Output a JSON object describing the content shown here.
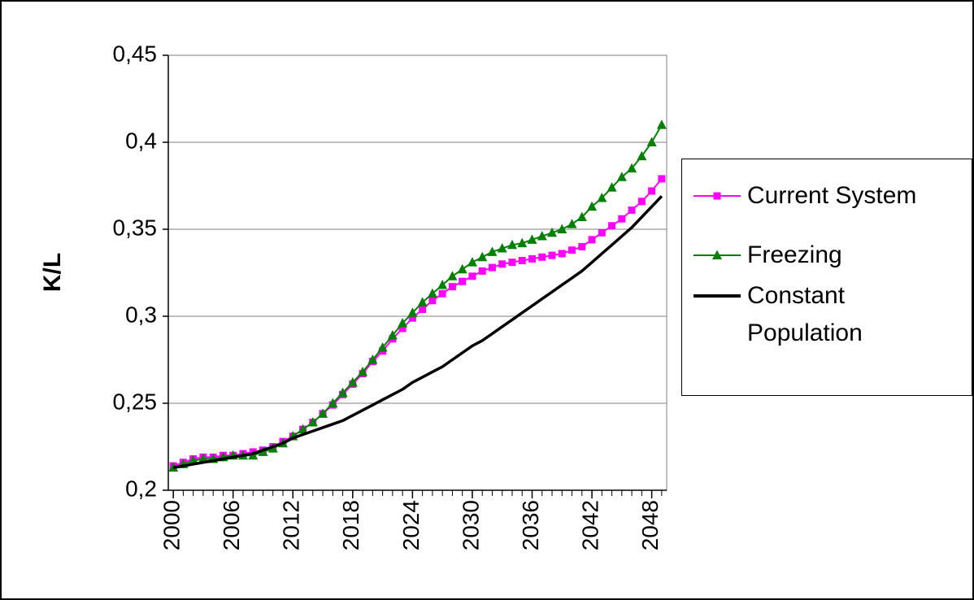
{
  "chart_data": {
    "type": "line",
    "y_label": "K/L",
    "x": [
      2000,
      2001,
      2002,
      2003,
      2004,
      2005,
      2006,
      2007,
      2008,
      2009,
      2010,
      2011,
      2012,
      2013,
      2014,
      2015,
      2016,
      2017,
      2018,
      2019,
      2020,
      2021,
      2022,
      2023,
      2024,
      2025,
      2026,
      2027,
      2028,
      2029,
      2030,
      2031,
      2032,
      2033,
      2034,
      2035,
      2036,
      2037,
      2038,
      2039,
      2040,
      2041,
      2042,
      2043,
      2044,
      2045,
      2046,
      2047,
      2048,
      2049
    ],
    "xlim": [
      1999.5,
      2049.5
    ],
    "xticks": [
      2000,
      2006,
      2012,
      2018,
      2024,
      2030,
      2036,
      2042,
      2048
    ],
    "ylim": [
      0.2,
      0.45
    ],
    "yticks": [
      {
        "value": 0.2,
        "label": "0,2"
      },
      {
        "value": 0.25,
        "label": "0,25"
      },
      {
        "value": 0.3,
        "label": "0,3"
      },
      {
        "value": 0.35,
        "label": "0,35"
      },
      {
        "value": 0.4,
        "label": "0,4"
      },
      {
        "value": 0.45,
        "label": "0,45"
      }
    ],
    "grid": true,
    "legend": "right",
    "series": [
      {
        "name": "Current System",
        "color": "#ff00ff",
        "marker": "square",
        "values": [
          0.214,
          0.216,
          0.218,
          0.219,
          0.219,
          0.22,
          0.22,
          0.221,
          0.222,
          0.223,
          0.225,
          0.228,
          0.231,
          0.235,
          0.239,
          0.244,
          0.249,
          0.255,
          0.261,
          0.267,
          0.274,
          0.28,
          0.287,
          0.293,
          0.299,
          0.304,
          0.309,
          0.313,
          0.317,
          0.32,
          0.323,
          0.326,
          0.328,
          0.33,
          0.331,
          0.332,
          0.333,
          0.334,
          0.335,
          0.336,
          0.338,
          0.34,
          0.344,
          0.348,
          0.352,
          0.356,
          0.361,
          0.366,
          0.372,
          0.379
        ]
      },
      {
        "name": "Freezing",
        "color": "#008000",
        "marker": "triangle",
        "values": [
          0.213,
          0.215,
          0.217,
          0.218,
          0.218,
          0.219,
          0.22,
          0.22,
          0.22,
          0.222,
          0.224,
          0.227,
          0.231,
          0.235,
          0.239,
          0.244,
          0.25,
          0.256,
          0.262,
          0.268,
          0.275,
          0.282,
          0.289,
          0.296,
          0.302,
          0.308,
          0.313,
          0.318,
          0.323,
          0.327,
          0.331,
          0.334,
          0.337,
          0.339,
          0.341,
          0.342,
          0.344,
          0.346,
          0.348,
          0.35,
          0.353,
          0.357,
          0.363,
          0.368,
          0.374,
          0.38,
          0.385,
          0.392,
          0.4,
          0.41
        ]
      },
      {
        "name": "Constant Population",
        "color": "#000000",
        "marker": "none",
        "values": [
          0.213,
          0.214,
          0.215,
          0.216,
          0.217,
          0.218,
          0.219,
          0.22,
          0.221,
          0.223,
          0.225,
          0.227,
          0.23,
          0.232,
          0.234,
          0.236,
          0.238,
          0.24,
          0.243,
          0.246,
          0.249,
          0.252,
          0.255,
          0.258,
          0.262,
          0.265,
          0.268,
          0.271,
          0.275,
          0.279,
          0.283,
          0.286,
          0.29,
          0.294,
          0.298,
          0.302,
          0.306,
          0.31,
          0.314,
          0.318,
          0.322,
          0.326,
          0.331,
          0.336,
          0.341,
          0.346,
          0.351,
          0.357,
          0.363,
          0.369
        ]
      }
    ]
  }
}
